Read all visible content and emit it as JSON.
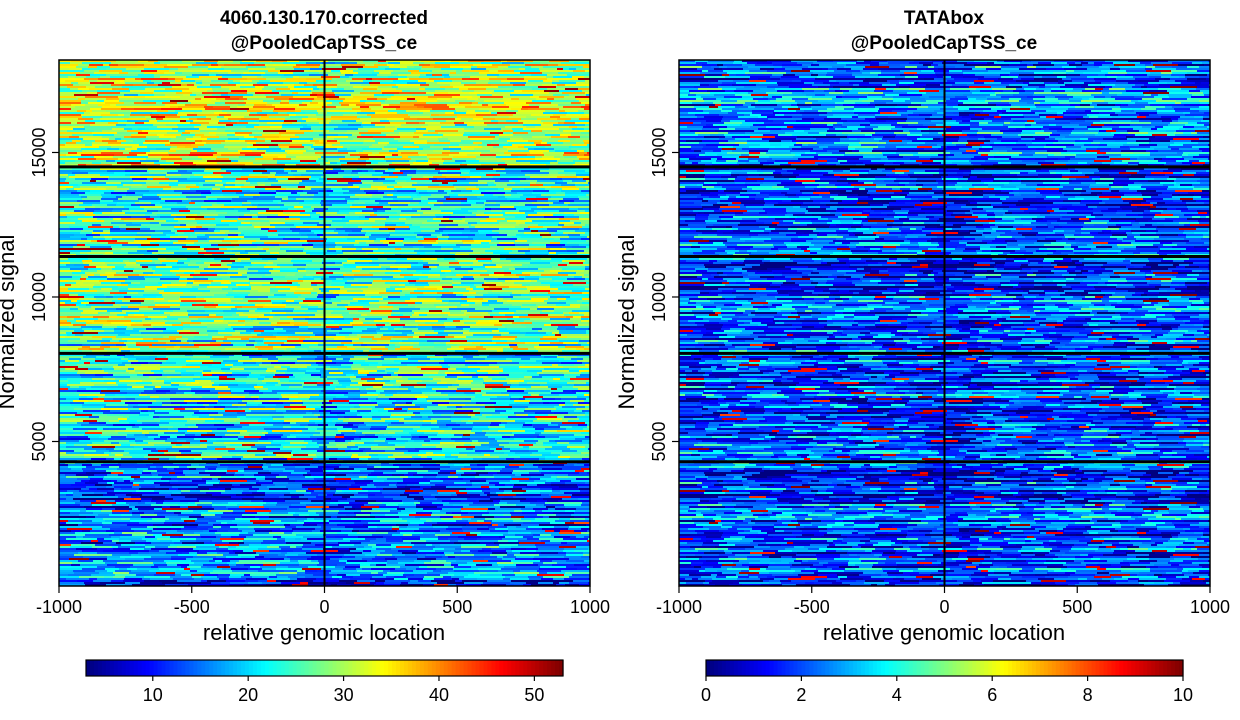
{
  "chart_data": [
    {
      "type": "heatmap",
      "title": "4060.130.170.corrected",
      "subtitle": "@PooledCapTSS_ce",
      "xlabel": "relative genomic location",
      "ylabel": "Normalized signal",
      "xlim": [
        -1000,
        1000
      ],
      "ylim": [
        0,
        18200
      ],
      "xticks": [
        -1000,
        -500,
        0,
        500,
        1000
      ],
      "xtick_labels": [
        "-1000",
        "-500",
        "0",
        "500",
        "1000"
      ],
      "yticks": [
        5000,
        10000,
        15000
      ],
      "ytick_labels": [
        "5000",
        "10000",
        "15000"
      ],
      "center_line_x": 0,
      "cluster_boundaries": [
        4300,
        8050,
        11400,
        14500
      ],
      "cluster_mean_signal": [
        15,
        22,
        26,
        24,
        31
      ],
      "colorbar": {
        "colormap": "jet",
        "range": [
          3,
          53
        ],
        "ticks": [
          10,
          20,
          30,
          40,
          50
        ],
        "tick_labels": [
          "10",
          "20",
          "30",
          "40",
          "50"
        ]
      }
    },
    {
      "type": "heatmap",
      "title": "TATAbox",
      "subtitle": "@PooledCapTSS_ce",
      "xlabel": "relative genomic location",
      "ylabel": "Normalized signal",
      "xlim": [
        -1000,
        1000
      ],
      "ylim": [
        0,
        18200
      ],
      "xticks": [
        -1000,
        -500,
        0,
        500,
        1000
      ],
      "xtick_labels": [
        "-1000",
        "-500",
        "0",
        "500",
        "1000"
      ],
      "yticks": [
        5000,
        10000,
        15000
      ],
      "ytick_labels": [
        "5000",
        "10000",
        "15000"
      ],
      "center_line_x": 0,
      "cluster_boundaries": [
        4300,
        8050,
        11400,
        14500
      ],
      "cluster_mean_signal": [
        2,
        2,
        2,
        2,
        2.5
      ],
      "colorbar": {
        "colormap": "jet",
        "range": [
          0,
          10
        ],
        "ticks": [
          0,
          2,
          4,
          6,
          8,
          10
        ],
        "tick_labels": [
          "0",
          "2",
          "4",
          "6",
          "8",
          "10"
        ]
      }
    }
  ]
}
